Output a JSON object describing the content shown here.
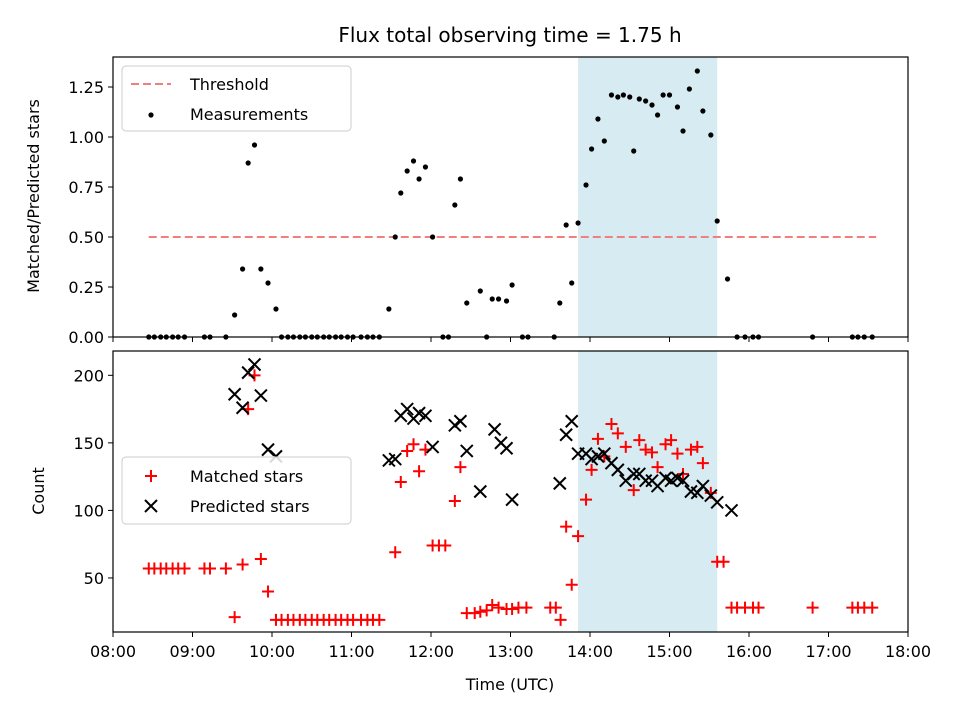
{
  "figure_title": "Flux total observing time = 1.75 h",
  "colors": {
    "threshold": "#f08080",
    "measurements": "#000000",
    "matched": "#ff0000",
    "predicted": "#000000",
    "span": "#add8e6"
  },
  "chart_data": [
    {
      "type": "scatter",
      "title": "Flux total observing time = 1.75 h",
      "xlabel": "",
      "ylabel": "Matched/Predicted stars",
      "x_unit": "hours UTC",
      "xlim": [
        8,
        18
      ],
      "ylim": [
        0,
        1.4
      ],
      "yticks": [
        0,
        0.25,
        0.5,
        0.75,
        1.0,
        1.25
      ],
      "ytick_labels": [
        "0.00",
        "0.25",
        "0.50",
        "0.75",
        "1.00",
        "1.25"
      ],
      "shaded_span": [
        13.85,
        15.6
      ],
      "legend": {
        "location": "upper left",
        "entries": [
          "Threshold",
          "Measurements"
        ]
      },
      "series": [
        {
          "name": "Threshold",
          "kind": "line",
          "style": "dashed",
          "x": [
            8.45,
            17.6
          ],
          "y": [
            0.5,
            0.5
          ]
        },
        {
          "name": "Measurements",
          "kind": "scatter",
          "marker": "dot",
          "points": [
            [
              8.45,
              0
            ],
            [
              8.52,
              0
            ],
            [
              8.6,
              0
            ],
            [
              8.67,
              0
            ],
            [
              8.75,
              0
            ],
            [
              8.82,
              0
            ],
            [
              8.9,
              0
            ],
            [
              9.15,
              0
            ],
            [
              9.22,
              0
            ],
            [
              9.42,
              0
            ],
            [
              9.53,
              0.11
            ],
            [
              9.63,
              0.34
            ],
            [
              9.7,
              0.87
            ],
            [
              9.78,
              0.96
            ],
            [
              9.86,
              0.34
            ],
            [
              9.95,
              0.27
            ],
            [
              10.05,
              0.14
            ],
            [
              10.12,
              0
            ],
            [
              10.2,
              0
            ],
            [
              10.27,
              0
            ],
            [
              10.35,
              0
            ],
            [
              10.42,
              0
            ],
            [
              10.5,
              0
            ],
            [
              10.57,
              0
            ],
            [
              10.65,
              0
            ],
            [
              10.72,
              0
            ],
            [
              10.8,
              0
            ],
            [
              10.87,
              0
            ],
            [
              10.95,
              0
            ],
            [
              11.02,
              0
            ],
            [
              11.12,
              0
            ],
            [
              11.2,
              0
            ],
            [
              11.27,
              0
            ],
            [
              11.35,
              0
            ],
            [
              11.47,
              0.14
            ],
            [
              11.55,
              0.5
            ],
            [
              11.62,
              0.72
            ],
            [
              11.7,
              0.83
            ],
            [
              11.78,
              0.88
            ],
            [
              11.85,
              0.79
            ],
            [
              11.93,
              0.85
            ],
            [
              12.02,
              0.5
            ],
            [
              12.15,
              0
            ],
            [
              12.22,
              0
            ],
            [
              12.3,
              0.66
            ],
            [
              12.37,
              0.79
            ],
            [
              12.45,
              0.17
            ],
            [
              12.62,
              0.23
            ],
            [
              12.7,
              0
            ],
            [
              12.77,
              0.19
            ],
            [
              12.85,
              0.19
            ],
            [
              12.95,
              0.18
            ],
            [
              13.02,
              0.26
            ],
            [
              13.15,
              0
            ],
            [
              13.22,
              0
            ],
            [
              13.55,
              0
            ],
            [
              13.62,
              0.17
            ],
            [
              13.7,
              0.56
            ],
            [
              13.77,
              0.27
            ],
            [
              13.85,
              0.57
            ],
            [
              13.95,
              0.76
            ],
            [
              14.02,
              0.94
            ],
            [
              14.1,
              1.09
            ],
            [
              14.18,
              0.98
            ],
            [
              14.27,
              1.21
            ],
            [
              14.35,
              1.2
            ],
            [
              14.42,
              1.21
            ],
            [
              14.5,
              1.2
            ],
            [
              14.55,
              0.93
            ],
            [
              14.62,
              1.19
            ],
            [
              14.7,
              1.18
            ],
            [
              14.78,
              1.16
            ],
            [
              14.85,
              1.11
            ],
            [
              14.92,
              1.21
            ],
            [
              15.0,
              1.21
            ],
            [
              15.1,
              1.15
            ],
            [
              15.17,
              1.03
            ],
            [
              15.25,
              1.24
            ],
            [
              15.35,
              1.33
            ],
            [
              15.42,
              1.13
            ],
            [
              15.52,
              1.01
            ],
            [
              15.6,
              0.58
            ],
            [
              15.73,
              0.29
            ],
            [
              15.85,
              0
            ],
            [
              15.95,
              0
            ],
            [
              16.05,
              0
            ],
            [
              16.12,
              0
            ],
            [
              16.8,
              0
            ],
            [
              17.3,
              0
            ],
            [
              17.37,
              0
            ],
            [
              17.45,
              0
            ],
            [
              17.55,
              0
            ]
          ]
        }
      ]
    },
    {
      "type": "scatter",
      "title": "",
      "xlabel": "Time (UTC)",
      "ylabel": "Count",
      "x_unit": "hours UTC",
      "xlim": [
        8,
        18
      ],
      "ylim": [
        10,
        218
      ],
      "yticks": [
        50,
        100,
        150,
        200
      ],
      "ytick_labels": [
        "50",
        "100",
        "150",
        "200"
      ],
      "xticks": [
        8,
        9,
        10,
        11,
        12,
        13,
        14,
        15,
        16,
        17,
        18
      ],
      "xtick_labels": [
        "08:00",
        "09:00",
        "10:00",
        "11:00",
        "12:00",
        "13:00",
        "14:00",
        "15:00",
        "16:00",
        "17:00",
        "18:00"
      ],
      "shaded_span": [
        13.85,
        15.6
      ],
      "legend": {
        "location": "center left",
        "entries": [
          "Matched stars",
          "Predicted stars"
        ]
      },
      "series": [
        {
          "name": "Matched stars",
          "kind": "scatter",
          "marker": "plus",
          "points": [
            [
              8.45,
              57
            ],
            [
              8.52,
              57
            ],
            [
              8.6,
              57
            ],
            [
              8.67,
              57
            ],
            [
              8.75,
              57
            ],
            [
              8.82,
              57
            ],
            [
              8.9,
              57
            ],
            [
              9.15,
              57
            ],
            [
              9.22,
              57
            ],
            [
              9.42,
              57
            ],
            [
              9.53,
              21
            ],
            [
              9.63,
              60
            ],
            [
              9.7,
              175
            ],
            [
              9.78,
              200
            ],
            [
              9.86,
              64
            ],
            [
              9.95,
              40
            ],
            [
              10.05,
              19
            ],
            [
              10.12,
              19
            ],
            [
              10.2,
              19
            ],
            [
              10.27,
              19
            ],
            [
              10.35,
              19
            ],
            [
              10.42,
              19
            ],
            [
              10.5,
              19
            ],
            [
              10.57,
              19
            ],
            [
              10.65,
              19
            ],
            [
              10.72,
              19
            ],
            [
              10.8,
              19
            ],
            [
              10.87,
              19
            ],
            [
              10.95,
              19
            ],
            [
              11.02,
              19
            ],
            [
              11.12,
              19
            ],
            [
              11.2,
              19
            ],
            [
              11.27,
              19
            ],
            [
              11.35,
              19
            ],
            [
              11.55,
              69
            ],
            [
              11.62,
              121
            ],
            [
              11.7,
              144
            ],
            [
              11.78,
              149
            ],
            [
              11.85,
              129
            ],
            [
              11.93,
              145
            ],
            [
              12.02,
              74
            ],
            [
              12.1,
              74
            ],
            [
              12.18,
              74
            ],
            [
              12.3,
              107
            ],
            [
              12.37,
              132
            ],
            [
              12.45,
              24
            ],
            [
              12.55,
              24
            ],
            [
              12.62,
              25
            ],
            [
              12.7,
              26
            ],
            [
              12.77,
              30
            ],
            [
              12.85,
              28
            ],
            [
              12.95,
              27
            ],
            [
              13.02,
              27
            ],
            [
              13.1,
              28
            ],
            [
              13.2,
              28
            ],
            [
              13.5,
              28
            ],
            [
              13.57,
              28
            ],
            [
              13.63,
              19
            ],
            [
              13.7,
              88
            ],
            [
              13.77,
              45
            ],
            [
              13.85,
              81
            ],
            [
              13.95,
              108
            ],
            [
              14.02,
              130
            ],
            [
              14.1,
              153
            ],
            [
              14.18,
              140
            ],
            [
              14.27,
              164
            ],
            [
              14.35,
              157
            ],
            [
              14.45,
              147
            ],
            [
              14.55,
              115
            ],
            [
              14.62,
              152
            ],
            [
              14.7,
              145
            ],
            [
              14.78,
              143
            ],
            [
              14.85,
              132
            ],
            [
              14.95,
              149
            ],
            [
              15.02,
              152
            ],
            [
              15.1,
              142
            ],
            [
              15.17,
              127
            ],
            [
              15.27,
              145
            ],
            [
              15.35,
              147
            ],
            [
              15.42,
              135
            ],
            [
              15.52,
              113
            ],
            [
              15.6,
              62
            ],
            [
              15.68,
              62
            ],
            [
              15.78,
              28
            ],
            [
              15.85,
              28
            ],
            [
              15.95,
              28
            ],
            [
              16.05,
              28
            ],
            [
              16.12,
              28
            ],
            [
              16.8,
              28
            ],
            [
              17.3,
              28
            ],
            [
              17.37,
              28
            ],
            [
              17.45,
              28
            ],
            [
              17.55,
              28
            ]
          ]
        },
        {
          "name": "Predicted stars",
          "kind": "scatter",
          "marker": "x",
          "points": [
            [
              9.53,
              186
            ],
            [
              9.63,
              176
            ],
            [
              9.7,
              202
            ],
            [
              9.78,
              208
            ],
            [
              9.86,
              185
            ],
            [
              9.95,
              145
            ],
            [
              10.05,
              140
            ],
            [
              11.47,
              137
            ],
            [
              11.55,
              138
            ],
            [
              11.62,
              170
            ],
            [
              11.7,
              175
            ],
            [
              11.78,
              168
            ],
            [
              11.85,
              172
            ],
            [
              11.93,
              170
            ],
            [
              12.02,
              147
            ],
            [
              12.3,
              163
            ],
            [
              12.37,
              166
            ],
            [
              12.45,
              144
            ],
            [
              12.62,
              114
            ],
            [
              12.8,
              160
            ],
            [
              12.88,
              150
            ],
            [
              12.95,
              146
            ],
            [
              13.02,
              108
            ],
            [
              13.62,
              120
            ],
            [
              13.7,
              156
            ],
            [
              13.77,
              166
            ],
            [
              13.85,
              142
            ],
            [
              13.95,
              142
            ],
            [
              14.02,
              138
            ],
            [
              14.1,
              140
            ],
            [
              14.18,
              142
            ],
            [
              14.27,
              135
            ],
            [
              14.35,
              130
            ],
            [
              14.45,
              122
            ],
            [
              14.55,
              127
            ],
            [
              14.62,
              127
            ],
            [
              14.7,
              122
            ],
            [
              14.78,
              122
            ],
            [
              14.85,
              118
            ],
            [
              14.95,
              124
            ],
            [
              15.02,
              122
            ],
            [
              15.1,
              124
            ],
            [
              15.17,
              122
            ],
            [
              15.27,
              114
            ],
            [
              15.35,
              113
            ],
            [
              15.42,
              118
            ],
            [
              15.52,
              111
            ],
            [
              15.6,
              106
            ],
            [
              15.78,
              100
            ]
          ]
        }
      ]
    }
  ]
}
